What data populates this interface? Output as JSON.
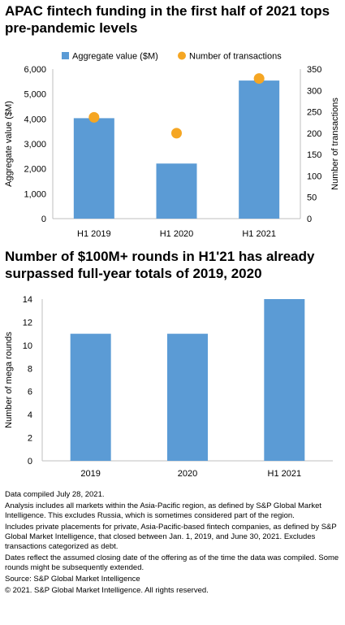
{
  "chart_data": [
    {
      "type": "bar",
      "title": "APAC fintech funding in the first half of 2021 tops pre-pandemic levels",
      "categories": [
        "H1 2019",
        "H1 2020",
        "H1 2021"
      ],
      "series": [
        {
          "name": "Aggregate value ($M)",
          "type": "bar",
          "axis": "left",
          "values": [
            4030,
            2210,
            5540
          ],
          "color": "#5b9bd5"
        },
        {
          "name": "Number of transactions",
          "type": "scatter",
          "axis": "right",
          "values": [
            237,
            200,
            328
          ],
          "color": "#f5a623"
        }
      ],
      "ylabel": "Aggregate value ($M)",
      "ylabel_right": "Number of transactions",
      "ylim": [
        0,
        6000
      ],
      "ylim_right": [
        0,
        350
      ],
      "yticks": [
        "0",
        "1,000",
        "2,000",
        "3,000",
        "4,000",
        "5,000",
        "6,000"
      ],
      "yticks_right": [
        "0",
        "50",
        "100",
        "150",
        "200",
        "250",
        "300",
        "350"
      ],
      "legend": "top",
      "grid": false
    },
    {
      "type": "bar",
      "title": "Number of $100M+ rounds in H1'21 has already surpassed full-year totals of 2019, 2020",
      "categories": [
        "2019",
        "2020",
        "H1 2021"
      ],
      "series": [
        {
          "name": "",
          "values": [
            11,
            11,
            14
          ],
          "color": "#5b9bd5"
        }
      ],
      "ylabel": "Number of mega rounds",
      "ylim": [
        0,
        14
      ],
      "yticks": [
        "0",
        "2",
        "4",
        "6",
        "8",
        "10",
        "12",
        "14"
      ],
      "grid": false
    }
  ],
  "footnotes": [
    "Data compiled July 28, 2021.",
    "Analysis includes all markets within the Asia-Pacific region, as defined by S&P Global Market Intelligence. This excludes Russia, which is sometimes considered part of the region.",
    "Includes private placements for private, Asia-Pacific-based fintech companies, as defined by S&P Global Market Intelligence, that closed between Jan. 1, 2019, and June 30, 2021. Excludes transactions categorized as debt.",
    "Dates reflect the assumed closing date of the offering as of the time the data was compiled. Some rounds might be subsequently extended.",
    "Source: S&P Global Market Intelligence",
    "© 2021. S&P Global Market Intelligence. All rights reserved."
  ]
}
